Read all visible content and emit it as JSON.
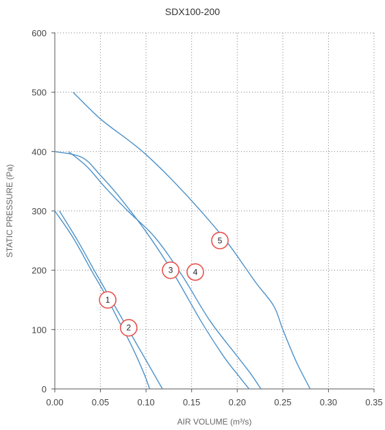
{
  "chart_data": {
    "type": "line",
    "title": "SDX100-200",
    "xlabel": "AIR VOLUME (m³/s)",
    "ylabel": "STATIC PRESSURE (Pa)",
    "xlim": [
      0,
      0.35
    ],
    "ylim": [
      0,
      600
    ],
    "x_ticks": [
      "0.00",
      "0.05",
      "0.10",
      "0.15",
      "0.20",
      "0.25",
      "0.30",
      "0.35"
    ],
    "y_ticks": [
      "0",
      "100",
      "200",
      "300",
      "400",
      "500",
      "600"
    ],
    "grid": true,
    "colors": {
      "line": "#4a90c8",
      "marker": "#e8504a",
      "grid": "#777777"
    },
    "series": [
      {
        "marker": "1",
        "x": [
          0.0,
          0.02,
          0.04,
          0.055,
          0.07,
          0.085,
          0.098,
          0.104
        ],
        "y": [
          300,
          255,
          200,
          160,
          115,
          70,
          25,
          0
        ]
      },
      {
        "marker": "2",
        "x": [
          0.005,
          0.025,
          0.045,
          0.06,
          0.075,
          0.09,
          0.105,
          0.118
        ],
        "y": [
          300,
          250,
          195,
          155,
          115,
          75,
          35,
          0
        ]
      },
      {
        "marker": "3",
        "x": [
          0.0,
          0.03,
          0.05,
          0.07,
          0.1,
          0.13,
          0.16,
          0.185,
          0.2,
          0.213
        ],
        "y": [
          400,
          390,
          360,
          325,
          265,
          195,
          115,
          55,
          25,
          0
        ]
      },
      {
        "marker": "4",
        "x": [
          0.015,
          0.035,
          0.055,
          0.08,
          0.11,
          0.14,
          0.17,
          0.2,
          0.215,
          0.226
        ],
        "y": [
          400,
          375,
          340,
          300,
          255,
          190,
          115,
          55,
          25,
          0
        ]
      },
      {
        "marker": "5",
        "x": [
          0.02,
          0.05,
          0.08,
          0.1,
          0.13,
          0.16,
          0.19,
          0.22,
          0.24,
          0.25,
          0.265,
          0.28
        ],
        "y": [
          500,
          455,
          420,
          395,
          350,
          300,
          245,
          180,
          140,
          100,
          45,
          0
        ]
      }
    ],
    "markers": [
      {
        "label": "1",
        "x": 0.058,
        "y": 150
      },
      {
        "label": "2",
        "x": 0.081,
        "y": 103
      },
      {
        "label": "3",
        "x": 0.127,
        "y": 200
      },
      {
        "label": "4",
        "x": 0.154,
        "y": 197
      },
      {
        "label": "5",
        "x": 0.181,
        "y": 250
      }
    ]
  }
}
